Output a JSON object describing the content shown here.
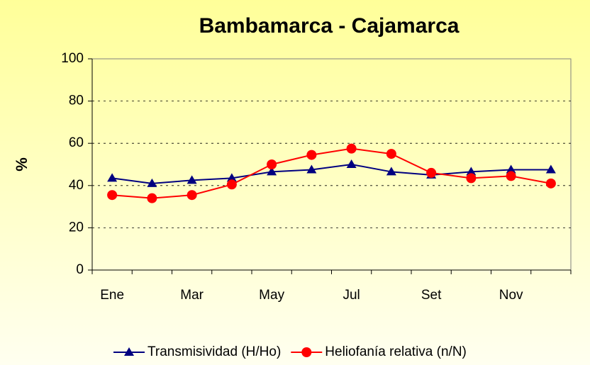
{
  "chart_data": {
    "type": "line",
    "title": "Bambamarca - Cajamarca",
    "y_label": "%",
    "categories": [
      "Ene",
      null,
      "Mar",
      null,
      "May",
      null,
      "Jul",
      null,
      "Set",
      null,
      "Nov",
      null
    ],
    "series": [
      {
        "name": "Transmisividad (H/Ho)",
        "color": "#000080",
        "marker": "triangle",
        "values": [
          43.5,
          41,
          42.5,
          43.5,
          46.5,
          47.5,
          50,
          46.5,
          45,
          46.5,
          47.5,
          47.5
        ]
      },
      {
        "name": "Heliofanía relativa (n/N)",
        "color": "#ff0000",
        "marker": "circle",
        "values": [
          35.5,
          34,
          35.5,
          40.5,
          50,
          54.5,
          57.5,
          55,
          46,
          43.5,
          44.5,
          41
        ]
      }
    ],
    "ylim": [
      0,
      100
    ],
    "yticks": [
      0,
      20,
      40,
      60,
      80,
      100
    ],
    "grid": true,
    "legend": "bottom"
  }
}
